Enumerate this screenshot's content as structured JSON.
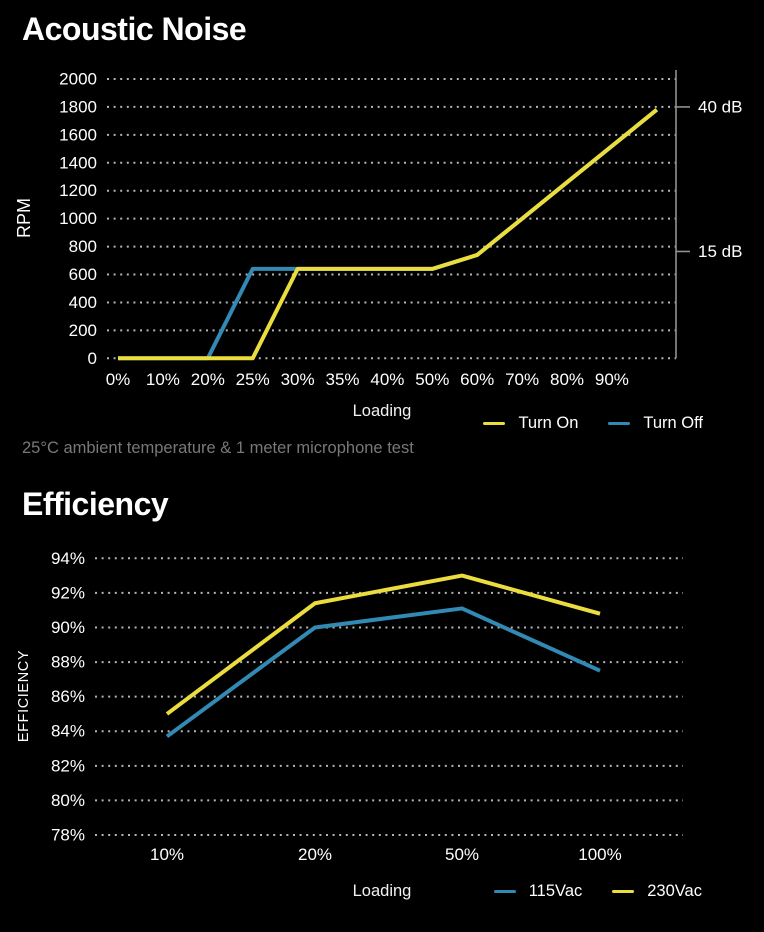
{
  "colors": {
    "background": "#000000",
    "yellow": "#eadd3d",
    "blue": "#3289b3",
    "gridline": "#b5b5b5",
    "right_axis": "#919191",
    "text": "#ffffff",
    "footnote_text": "#787878"
  },
  "chart_data": [
    {
      "type": "line",
      "title": "Acoustic Noise",
      "xlabel": "Loading",
      "ylabel": "RPM",
      "footnote": "25°C ambient temperature & 1 meter microphone test",
      "categories": [
        "0%",
        "10%",
        "20%",
        "25%",
        "30%",
        "35%",
        "40%",
        "50%",
        "60%",
        "70%",
        "80%",
        "90%",
        ""
      ],
      "series": [
        {
          "name": "Turn On",
          "color": "#eadd3d",
          "values": [
            0,
            0,
            0,
            0,
            640,
            640,
            640,
            640,
            740,
            1000,
            1260,
            1520,
            1780
          ]
        },
        {
          "name": "Turn Off",
          "color": "#3289b3",
          "values": [
            0,
            0,
            0,
            640,
            640,
            640,
            640,
            640,
            740,
            1000,
            1260,
            1520,
            1780
          ]
        }
      ],
      "ylim": [
        0,
        2000
      ],
      "yticks": [
        0,
        200,
        400,
        600,
        800,
        1000,
        1200,
        1400,
        1600,
        1800,
        2000
      ],
      "ytick_suffix": "",
      "grid": "dotted-horizontal",
      "legend_position": "bottom-right",
      "right_axis": {
        "ticks": [
          {
            "label": "40 dB",
            "value": 1800
          },
          {
            "label": "15 dB",
            "value": 765
          }
        ]
      }
    },
    {
      "type": "line",
      "title": "Efficiency",
      "xlabel": "Loading",
      "ylabel": "EFFICIENCY",
      "categories": [
        "10%",
        "20%",
        "50%",
        "100%"
      ],
      "series": [
        {
          "name": "115Vac",
          "color": "#3289b3",
          "values": [
            83.7,
            90.0,
            91.1,
            87.5
          ]
        },
        {
          "name": "230Vac",
          "color": "#eadd3d",
          "values": [
            85.0,
            91.4,
            93.0,
            90.8
          ]
        }
      ],
      "ylim": [
        78,
        94
      ],
      "yticks": [
        78,
        80,
        82,
        84,
        86,
        88,
        90,
        92,
        94
      ],
      "ytick_suffix": "%",
      "grid": "dotted-horizontal",
      "legend_position": "bottom-right"
    }
  ]
}
